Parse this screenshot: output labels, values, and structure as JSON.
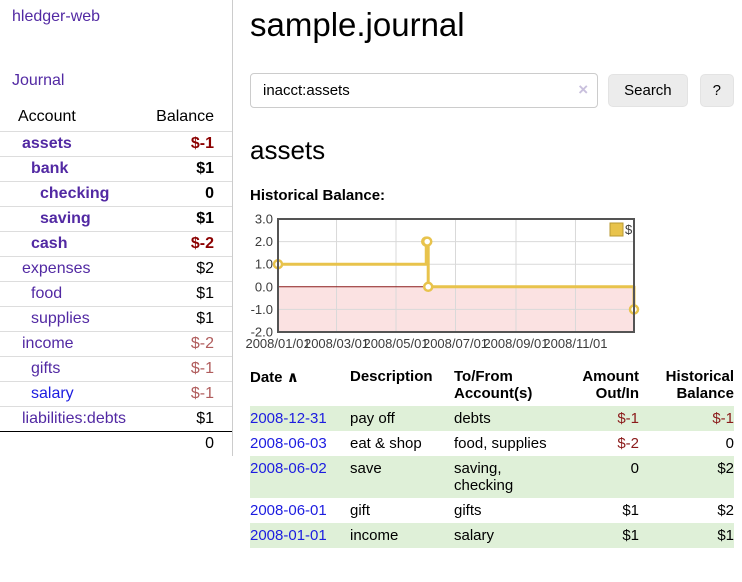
{
  "theme": {
    "link_purple": "#5229a3",
    "link_blue": "#1c1ce0",
    "negative_strong": "#8b0000",
    "negative_soft": "#b05c5c",
    "row_green": "#dff0d8",
    "series_gold": "#e8c34c"
  },
  "sidebar": {
    "brand": "hledger-web",
    "nav_journal": "Journal",
    "accounts": {
      "header_account": "Account",
      "header_balance": "Balance",
      "rows": [
        {
          "name": "assets",
          "balance": "$-1"
        },
        {
          "name": "bank",
          "balance": "$1"
        },
        {
          "name": "checking",
          "balance": "0"
        },
        {
          "name": "saving",
          "balance": "$1"
        },
        {
          "name": "cash",
          "balance": "$-2"
        },
        {
          "name": "expenses",
          "balance": "$2"
        },
        {
          "name": "food",
          "balance": "$1"
        },
        {
          "name": "supplies",
          "balance": "$1"
        },
        {
          "name": "income",
          "balance": "$-2"
        },
        {
          "name": "gifts",
          "balance": "$-1"
        },
        {
          "name": "salary",
          "balance": "$-1"
        },
        {
          "name": "liabilities:debts",
          "balance": "$1"
        }
      ],
      "total": "0"
    }
  },
  "main": {
    "title": "sample.journal",
    "search": {
      "value": "inacct:assets",
      "clear": "×",
      "search_button": "Search",
      "help_button": "?"
    },
    "account_heading": "assets",
    "section_label": "Historical Balance:"
  },
  "chart_data": {
    "type": "line",
    "subtype": "step",
    "title": "Historical Balance",
    "series": [
      {
        "name": "$",
        "color": "#e8c34c",
        "points": [
          [
            "2008-01-01",
            1
          ],
          [
            "2008-06-01",
            2
          ],
          [
            "2008-06-02",
            2
          ],
          [
            "2008-06-03",
            0
          ],
          [
            "2008-12-31",
            -1
          ]
        ]
      }
    ],
    "x_range": [
      "2008-01-01",
      "2008-12-31"
    ],
    "ylim": [
      -2,
      3
    ],
    "y_ticks": [
      3,
      2,
      1,
      0,
      -1,
      -2
    ],
    "x_ticks": [
      "2008/01/01",
      "2008/03/01",
      "2008/05/01",
      "2008/07/01",
      "2008/09/01",
      "2008/11/01"
    ],
    "grid": true,
    "legend_position": "top-right",
    "colors": {
      "negative_region": "#fbe2e2",
      "zero_line": "#8b1a1a",
      "grid": "#d9d9d9",
      "border": "#545454"
    }
  },
  "register": {
    "headers": {
      "date": "Date",
      "sort_indicator": "∧",
      "description": "Description",
      "accounts": "To/From Account(s)",
      "amount": "Amount Out/In",
      "balance": "Historical Balance"
    },
    "rows": [
      {
        "date": "2008-12-31",
        "description": "pay off",
        "accounts": "debts",
        "amount": "$-1",
        "balance": "$-1"
      },
      {
        "date": "2008-06-03",
        "description": "eat & shop",
        "accounts": "food, supplies",
        "amount": "$-2",
        "balance": "0"
      },
      {
        "date": "2008-06-02",
        "description": "save",
        "accounts": "saving, checking",
        "amount": "0",
        "balance": "$2"
      },
      {
        "date": "2008-06-01",
        "description": "gift",
        "accounts": "gifts",
        "amount": "$1",
        "balance": "$2"
      },
      {
        "date": "2008-01-01",
        "description": "income",
        "accounts": "salary",
        "amount": "$1",
        "balance": "$1"
      }
    ]
  }
}
